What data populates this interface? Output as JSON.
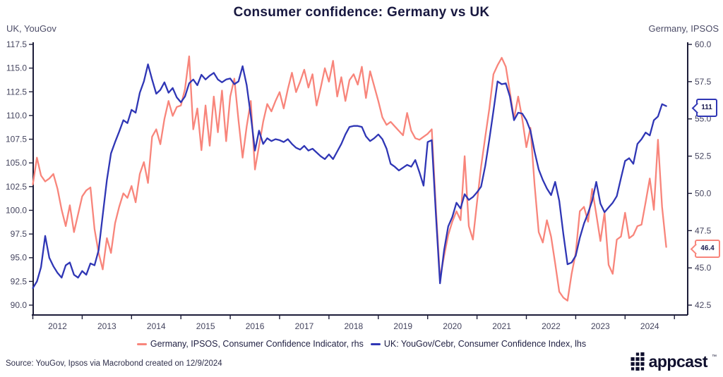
{
  "title": "Consumer confidence: Germany vs UK",
  "left_axis": {
    "label": "UK, YouGov",
    "ticks": [
      "117.5",
      "115.0",
      "112.5",
      "110.0",
      "107.5",
      "105.0",
      "102.5",
      "100.0",
      "97.5",
      "95.0",
      "92.5",
      "90.0"
    ],
    "min": 90.0,
    "max": 117.5
  },
  "right_axis": {
    "label": "Germany, IPSOS",
    "ticks": [
      "60.0",
      "57.5",
      "55.0",
      "52.5",
      "50.0",
      "47.5",
      "45.0",
      "42.5"
    ],
    "min": 42.5,
    "max": 60.0
  },
  "x_axis": {
    "years": [
      "2012",
      "2013",
      "2014",
      "2015",
      "2016",
      "2017",
      "2018",
      "2019",
      "2020",
      "2021",
      "2022",
      "2023",
      "2024"
    ]
  },
  "callouts": {
    "uk_last": "111",
    "germany_last": "46.4"
  },
  "legend": [
    {
      "label": "Germany, IPSOS, Consumer Confidence Indicator, rhs",
      "color": "#f8857b"
    },
    {
      "label": "UK: YouGov/Cebr, Consumer Confidence Index, lhs",
      "color": "#2f36b5"
    }
  ],
  "footer": {
    "source": "Source: YouGov, Ipsos via Macrobond created on 12/9/2024",
    "brand": "appcast"
  },
  "colors": {
    "germany": "#f8857b",
    "uk": "#2f36b5",
    "axis": "#1c1c38",
    "navy": "#17173f"
  },
  "chart_data": {
    "type": "line",
    "title": "Consumer confidence: Germany vs UK",
    "frequency": "monthly",
    "x_start": "2012-01",
    "x_end": "2024-11",
    "left_ylim": [
      90.0,
      117.5
    ],
    "right_ylim": [
      42.5,
      60.0
    ],
    "grid": false,
    "legend_position": "bottom",
    "series": [
      {
        "name": "Germany, IPSOS, Consumer Confidence Indicator",
        "axis": "right",
        "color": "#f8857b",
        "last_value_label": "46.4",
        "values": [
          50.6,
          52.4,
          51.2,
          50.8,
          51.0,
          51.3,
          50.3,
          48.9,
          47.8,
          49.2,
          47.4,
          48.6,
          49.8,
          50.2,
          50.4,
          47.6,
          46.0,
          44.9,
          47.0,
          46.0,
          48.0,
          49.1,
          50.0,
          49.7,
          50.5,
          49.4,
          51.3,
          52.1,
          50.7,
          53.8,
          54.3,
          53.3,
          55.0,
          56.2,
          55.2,
          55.8,
          55.9,
          57.0,
          59.2,
          54.3,
          55.7,
          52.9,
          55.9,
          53.2,
          56.5,
          54.1,
          56.9,
          53.5,
          56.5,
          57.7,
          54.9,
          52.4,
          54.5,
          56.2,
          51.6,
          53.2,
          54.8,
          56.0,
          55.5,
          56.2,
          56.8,
          55.7,
          57.0,
          58.1,
          56.8,
          57.5,
          58.3,
          57.1,
          58.0,
          55.9,
          57.1,
          58.4,
          57.5,
          58.9,
          56.5,
          57.8,
          56.2,
          57.6,
          58.0,
          57.3,
          58.5,
          56.4,
          58.2,
          57.2,
          56.2,
          55.1,
          54.6,
          54.8,
          54.5,
          54.2,
          53.9,
          55.4,
          54.2,
          53.7,
          53.6,
          53.8,
          54.0,
          54.3,
          49.0,
          44.3,
          45.8,
          47.2,
          48.1,
          48.8,
          48.2,
          52.5,
          47.8,
          46.9,
          49.4,
          51.8,
          53.8,
          55.7,
          58.0,
          58.6,
          59.1,
          58.5,
          56.8,
          55.0,
          56.5,
          55.0,
          53.1,
          54.4,
          50.6,
          47.4,
          46.7,
          48.2,
          47.1,
          45.3,
          43.4,
          43.0,
          42.8,
          44.6,
          46.0,
          48.8,
          49.1,
          48.1,
          50.3,
          48.6,
          46.8,
          48.7,
          45.2,
          44.6,
          46.9,
          47.1,
          48.7,
          47.0,
          47.2,
          47.8,
          47.9,
          49.4,
          51.0,
          48.9,
          53.6,
          49.1,
          46.4
        ]
      },
      {
        "name": "UK: YouGov/Cebr, Consumer Confidence Index",
        "axis": "left",
        "color": "#2f36b5",
        "last_value_label": "111",
        "values": [
          91.8,
          92.5,
          94.0,
          97.3,
          95.0,
          94.1,
          93.4,
          92.9,
          94.2,
          94.5,
          93.2,
          92.9,
          93.6,
          93.2,
          94.4,
          94.2,
          95.8,
          99.5,
          103.2,
          106.0,
          107.2,
          108.3,
          109.5,
          109.2,
          110.6,
          110.3,
          112.4,
          113.6,
          115.4,
          113.8,
          112.3,
          112.7,
          113.5,
          112.4,
          112.9,
          111.9,
          111.4,
          112.0,
          113.4,
          113.8,
          113.2,
          114.3,
          113.8,
          114.2,
          114.5,
          113.8,
          113.5,
          113.8,
          113.9,
          113.3,
          113.6,
          115.2,
          113.2,
          110.0,
          106.3,
          108.4,
          107.0,
          107.6,
          107.3,
          107.5,
          107.4,
          107.2,
          107.5,
          107.0,
          106.6,
          106.4,
          106.8,
          106.3,
          106.5,
          106.1,
          105.7,
          105.4,
          105.9,
          105.4,
          106.2,
          107.0,
          108.0,
          108.8,
          108.9,
          108.9,
          108.8,
          107.8,
          107.3,
          107.6,
          108.0,
          107.5,
          106.5,
          104.9,
          104.6,
          104.2,
          104.5,
          104.8,
          104.6,
          105.3,
          104.0,
          102.6,
          107.2,
          107.4,
          99.5,
          92.3,
          95.8,
          98.3,
          99.3,
          100.8,
          100.2,
          101.7,
          101.1,
          101.4,
          101.9,
          102.5,
          104.7,
          107.5,
          110.5,
          113.6,
          113.3,
          113.4,
          112.0,
          109.5,
          110.3,
          110.2,
          109.5,
          108.4,
          106.2,
          104.3,
          103.2,
          102.3,
          101.6,
          103.0,
          101.0,
          97.5,
          94.3,
          94.5,
          95.2,
          97.1,
          98.6,
          99.7,
          101.0,
          103.0,
          100.7,
          99.8,
          100.3,
          100.8,
          101.5,
          103.4,
          105.2,
          105.5,
          104.9,
          107.0,
          107.5,
          108.2,
          107.9,
          109.5,
          109.9,
          111.2,
          111.0
        ]
      }
    ]
  }
}
